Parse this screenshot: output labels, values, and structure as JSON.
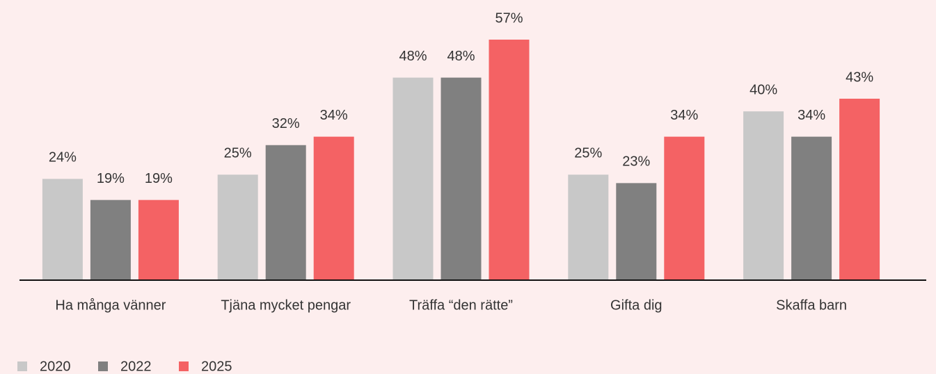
{
  "chart_data": {
    "type": "bar",
    "categories": [
      "Ha många vänner",
      "Tjäna mycket pengar",
      "Träffa “den rätte”",
      "Gifta dig",
      "Skaffa barn"
    ],
    "series": [
      {
        "name": "2020",
        "color": "#c8c8c8",
        "values": [
          24,
          25,
          48,
          25,
          40
        ],
        "value_labels": [
          "24%",
          "25%",
          "48%",
          "25%",
          "40%"
        ]
      },
      {
        "name": "2022",
        "color": "#808080",
        "values": [
          19,
          32,
          48,
          23,
          34
        ],
        "value_labels": [
          "19%",
          "32%",
          "48%",
          "23%",
          "34%"
        ]
      },
      {
        "name": "2025",
        "color": "#f46264",
        "values": [
          19,
          34,
          57,
          34,
          43
        ],
        "value_labels": [
          "19%",
          "34%",
          "57%",
          "34%",
          "43%"
        ]
      }
    ],
    "legend": "bottom-left"
  }
}
